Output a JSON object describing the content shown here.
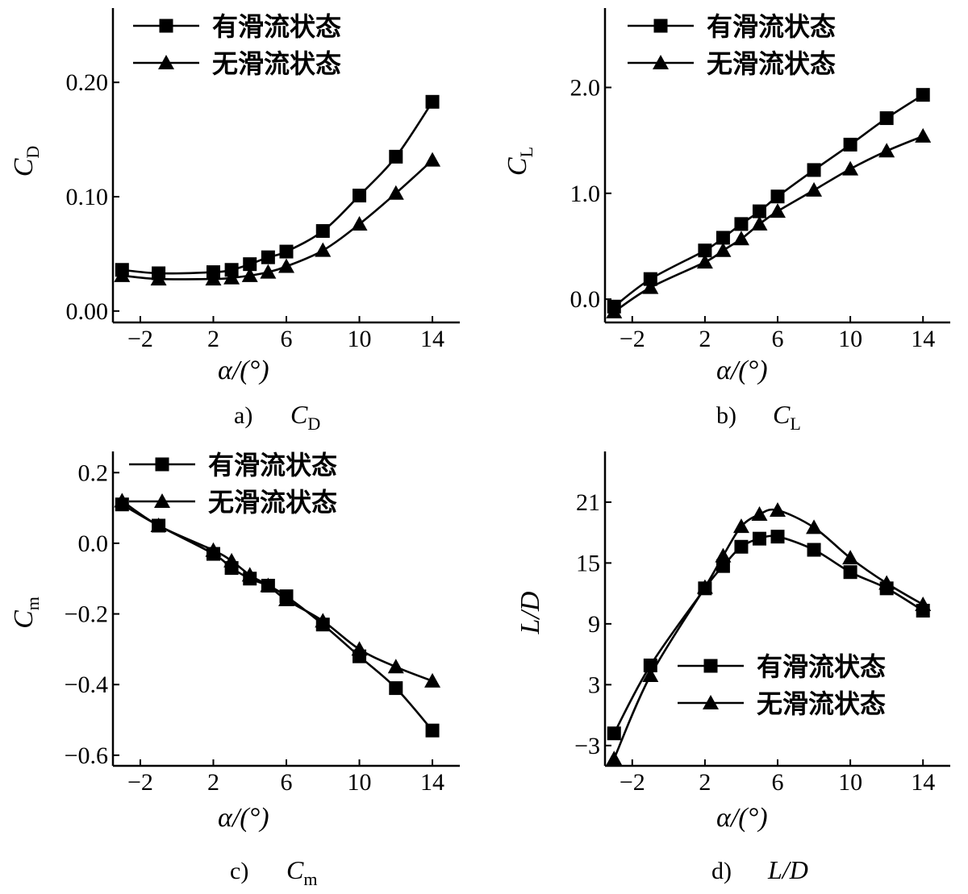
{
  "chart_data": [
    {
      "type": "line",
      "panel": "a",
      "caption_label": "a)",
      "caption_symbol": "C",
      "caption_sub": "D",
      "ylabel": "C",
      "ylabel_sub": "D",
      "xlabel": "α/(°)",
      "xlim": [
        -3.5,
        15.5
      ],
      "ylim": [
        -0.01,
        0.265
      ],
      "xticks": [
        -2,
        2,
        6,
        10,
        14
      ],
      "yticks": [
        0.0,
        0.1,
        0.2
      ],
      "ytick_labels": [
        "0.00",
        "0.10",
        "0.20"
      ],
      "legend_position": "top-left",
      "series": [
        {
          "name": "有滑流状态",
          "marker": "square",
          "x": [
            -3,
            -1,
            2,
            3,
            4,
            5,
            6,
            8,
            10,
            12,
            14
          ],
          "y": [
            0.036,
            0.033,
            0.034,
            0.036,
            0.041,
            0.047,
            0.052,
            0.07,
            0.101,
            0.135,
            0.183
          ]
        },
        {
          "name": "无滑流状态",
          "marker": "triangle",
          "x": [
            -3,
            -1,
            2,
            3,
            4,
            5,
            6,
            8,
            10,
            12,
            14
          ],
          "y": [
            0.031,
            0.028,
            0.028,
            0.029,
            0.031,
            0.034,
            0.039,
            0.053,
            0.076,
            0.103,
            0.132
          ]
        }
      ]
    },
    {
      "type": "line",
      "panel": "b",
      "caption_label": "b)",
      "caption_symbol": "C",
      "caption_sub": "L",
      "ylabel": "C",
      "ylabel_sub": "L",
      "xlabel": "α/(°)",
      "xlim": [
        -3.5,
        15.5
      ],
      "ylim": [
        -0.22,
        2.75
      ],
      "xticks": [
        -2,
        2,
        6,
        10,
        14
      ],
      "yticks": [
        0.0,
        1.0,
        2.0
      ],
      "ytick_labels": [
        "0.0",
        "1.0",
        "2.0"
      ],
      "legend_position": "top-left",
      "series": [
        {
          "name": "有滑流状态",
          "marker": "square",
          "x": [
            -3,
            -1,
            2,
            3,
            4,
            5,
            6,
            8,
            10,
            12,
            14
          ],
          "y": [
            -0.07,
            0.19,
            0.46,
            0.58,
            0.71,
            0.83,
            0.97,
            1.22,
            1.46,
            1.71,
            1.93
          ]
        },
        {
          "name": "无滑流状态",
          "marker": "triangle",
          "x": [
            -3,
            -1,
            2,
            3,
            4,
            5,
            6,
            8,
            10,
            12,
            14
          ],
          "y": [
            -0.12,
            0.11,
            0.35,
            0.46,
            0.57,
            0.71,
            0.83,
            1.03,
            1.23,
            1.4,
            1.54
          ]
        }
      ]
    },
    {
      "type": "line",
      "panel": "c",
      "caption_label": "c)",
      "caption_symbol": "C",
      "caption_sub": "m",
      "ylabel": "C",
      "ylabel_sub": "m",
      "xlabel": "α/(°)",
      "xlim": [
        -3.5,
        15.5
      ],
      "ylim": [
        -0.63,
        0.26
      ],
      "xticks": [
        -2,
        2,
        6,
        10,
        14
      ],
      "yticks": [
        -0.6,
        -0.4,
        -0.2,
        0.0,
        0.2
      ],
      "ytick_labels": [
        "-0.6",
        "-0.4",
        "-0.2",
        "0.0",
        "0.2"
      ],
      "legend_position": "top-right",
      "series": [
        {
          "name": "有滑流状态",
          "marker": "square",
          "x": [
            -3,
            -1,
            2,
            3,
            4,
            5,
            6,
            8,
            10,
            12,
            14
          ],
          "y": [
            0.11,
            0.05,
            -0.03,
            -0.07,
            -0.1,
            -0.12,
            -0.15,
            -0.23,
            -0.32,
            -0.41,
            -0.53
          ]
        },
        {
          "name": "无滑流状态",
          "marker": "triangle",
          "x": [
            -3,
            -1,
            2,
            3,
            4,
            5,
            6,
            8,
            10,
            12,
            14
          ],
          "y": [
            0.12,
            0.05,
            -0.02,
            -0.05,
            -0.09,
            -0.12,
            -0.16,
            -0.22,
            -0.3,
            -0.35,
            -0.39
          ]
        }
      ]
    },
    {
      "type": "line",
      "panel": "d",
      "caption_label": "d)",
      "caption_symbol": "L/D",
      "caption_sub": "",
      "ylabel": "L/D",
      "ylabel_sub": "",
      "xlabel": "α/(°)",
      "xlim": [
        -3.5,
        15.5
      ],
      "ylim": [
        -5.0,
        26.0
      ],
      "xticks": [
        -2,
        2,
        6,
        10,
        14
      ],
      "yticks": [
        -3,
        3,
        9,
        15,
        21
      ],
      "ytick_labels": [
        "-3",
        "3",
        "9",
        "15",
        "21"
      ],
      "legend_position": "bottom-right",
      "series": [
        {
          "name": "有滑流状态",
          "marker": "square",
          "x": [
            -3,
            -1,
            2,
            3,
            4,
            5,
            6,
            8,
            10,
            12,
            14
          ],
          "y": [
            -1.8,
            4.9,
            12.5,
            14.7,
            16.6,
            17.4,
            17.6,
            16.3,
            14.1,
            12.5,
            10.3
          ]
        },
        {
          "name": "无滑流状态",
          "marker": "triangle",
          "x": [
            -3,
            -1,
            2,
            3,
            4,
            5,
            6,
            8,
            10,
            12,
            14
          ],
          "y": [
            -4.3,
            3.9,
            12.6,
            15.7,
            18.6,
            19.8,
            20.2,
            18.5,
            15.5,
            13.0,
            10.9
          ]
        }
      ]
    }
  ]
}
